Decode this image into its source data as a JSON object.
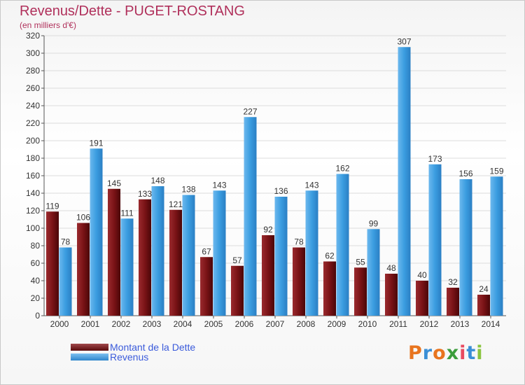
{
  "title": "Revenus/Dette - PUGET-ROSTANG",
  "subtitle": "(en milliers d'€)",
  "logo_text": "Proxiti",
  "colors": {
    "dette": "#7a1316",
    "revenus": "#3b9de0",
    "title": "#b0305b",
    "legend_text": "#3b5bdb"
  },
  "chart_data": {
    "type": "bar",
    "title": "Revenus/Dette - PUGET-ROSTANG",
    "subtitle": "(en milliers d'€)",
    "categories": [
      "2000",
      "2001",
      "2002",
      "2003",
      "2004",
      "2005",
      "2006",
      "2007",
      "2008",
      "2009",
      "2010",
      "2011",
      "2012",
      "2013",
      "2014"
    ],
    "series": [
      {
        "name": "Montant de la Dette",
        "values": [
          119,
          106,
          145,
          133,
          121,
          67,
          57,
          92,
          78,
          62,
          55,
          48,
          40,
          32,
          24
        ]
      },
      {
        "name": "Revenus",
        "values": [
          78,
          191,
          111,
          148,
          138,
          143,
          227,
          136,
          143,
          162,
          99,
          307,
          173,
          156,
          159
        ]
      }
    ],
    "ylim": [
      0,
      320
    ],
    "yticks": [
      0,
      20,
      40,
      60,
      80,
      100,
      120,
      140,
      160,
      180,
      200,
      220,
      240,
      260,
      280,
      300,
      320
    ],
    "grid": true,
    "legend": "bottom-left"
  }
}
